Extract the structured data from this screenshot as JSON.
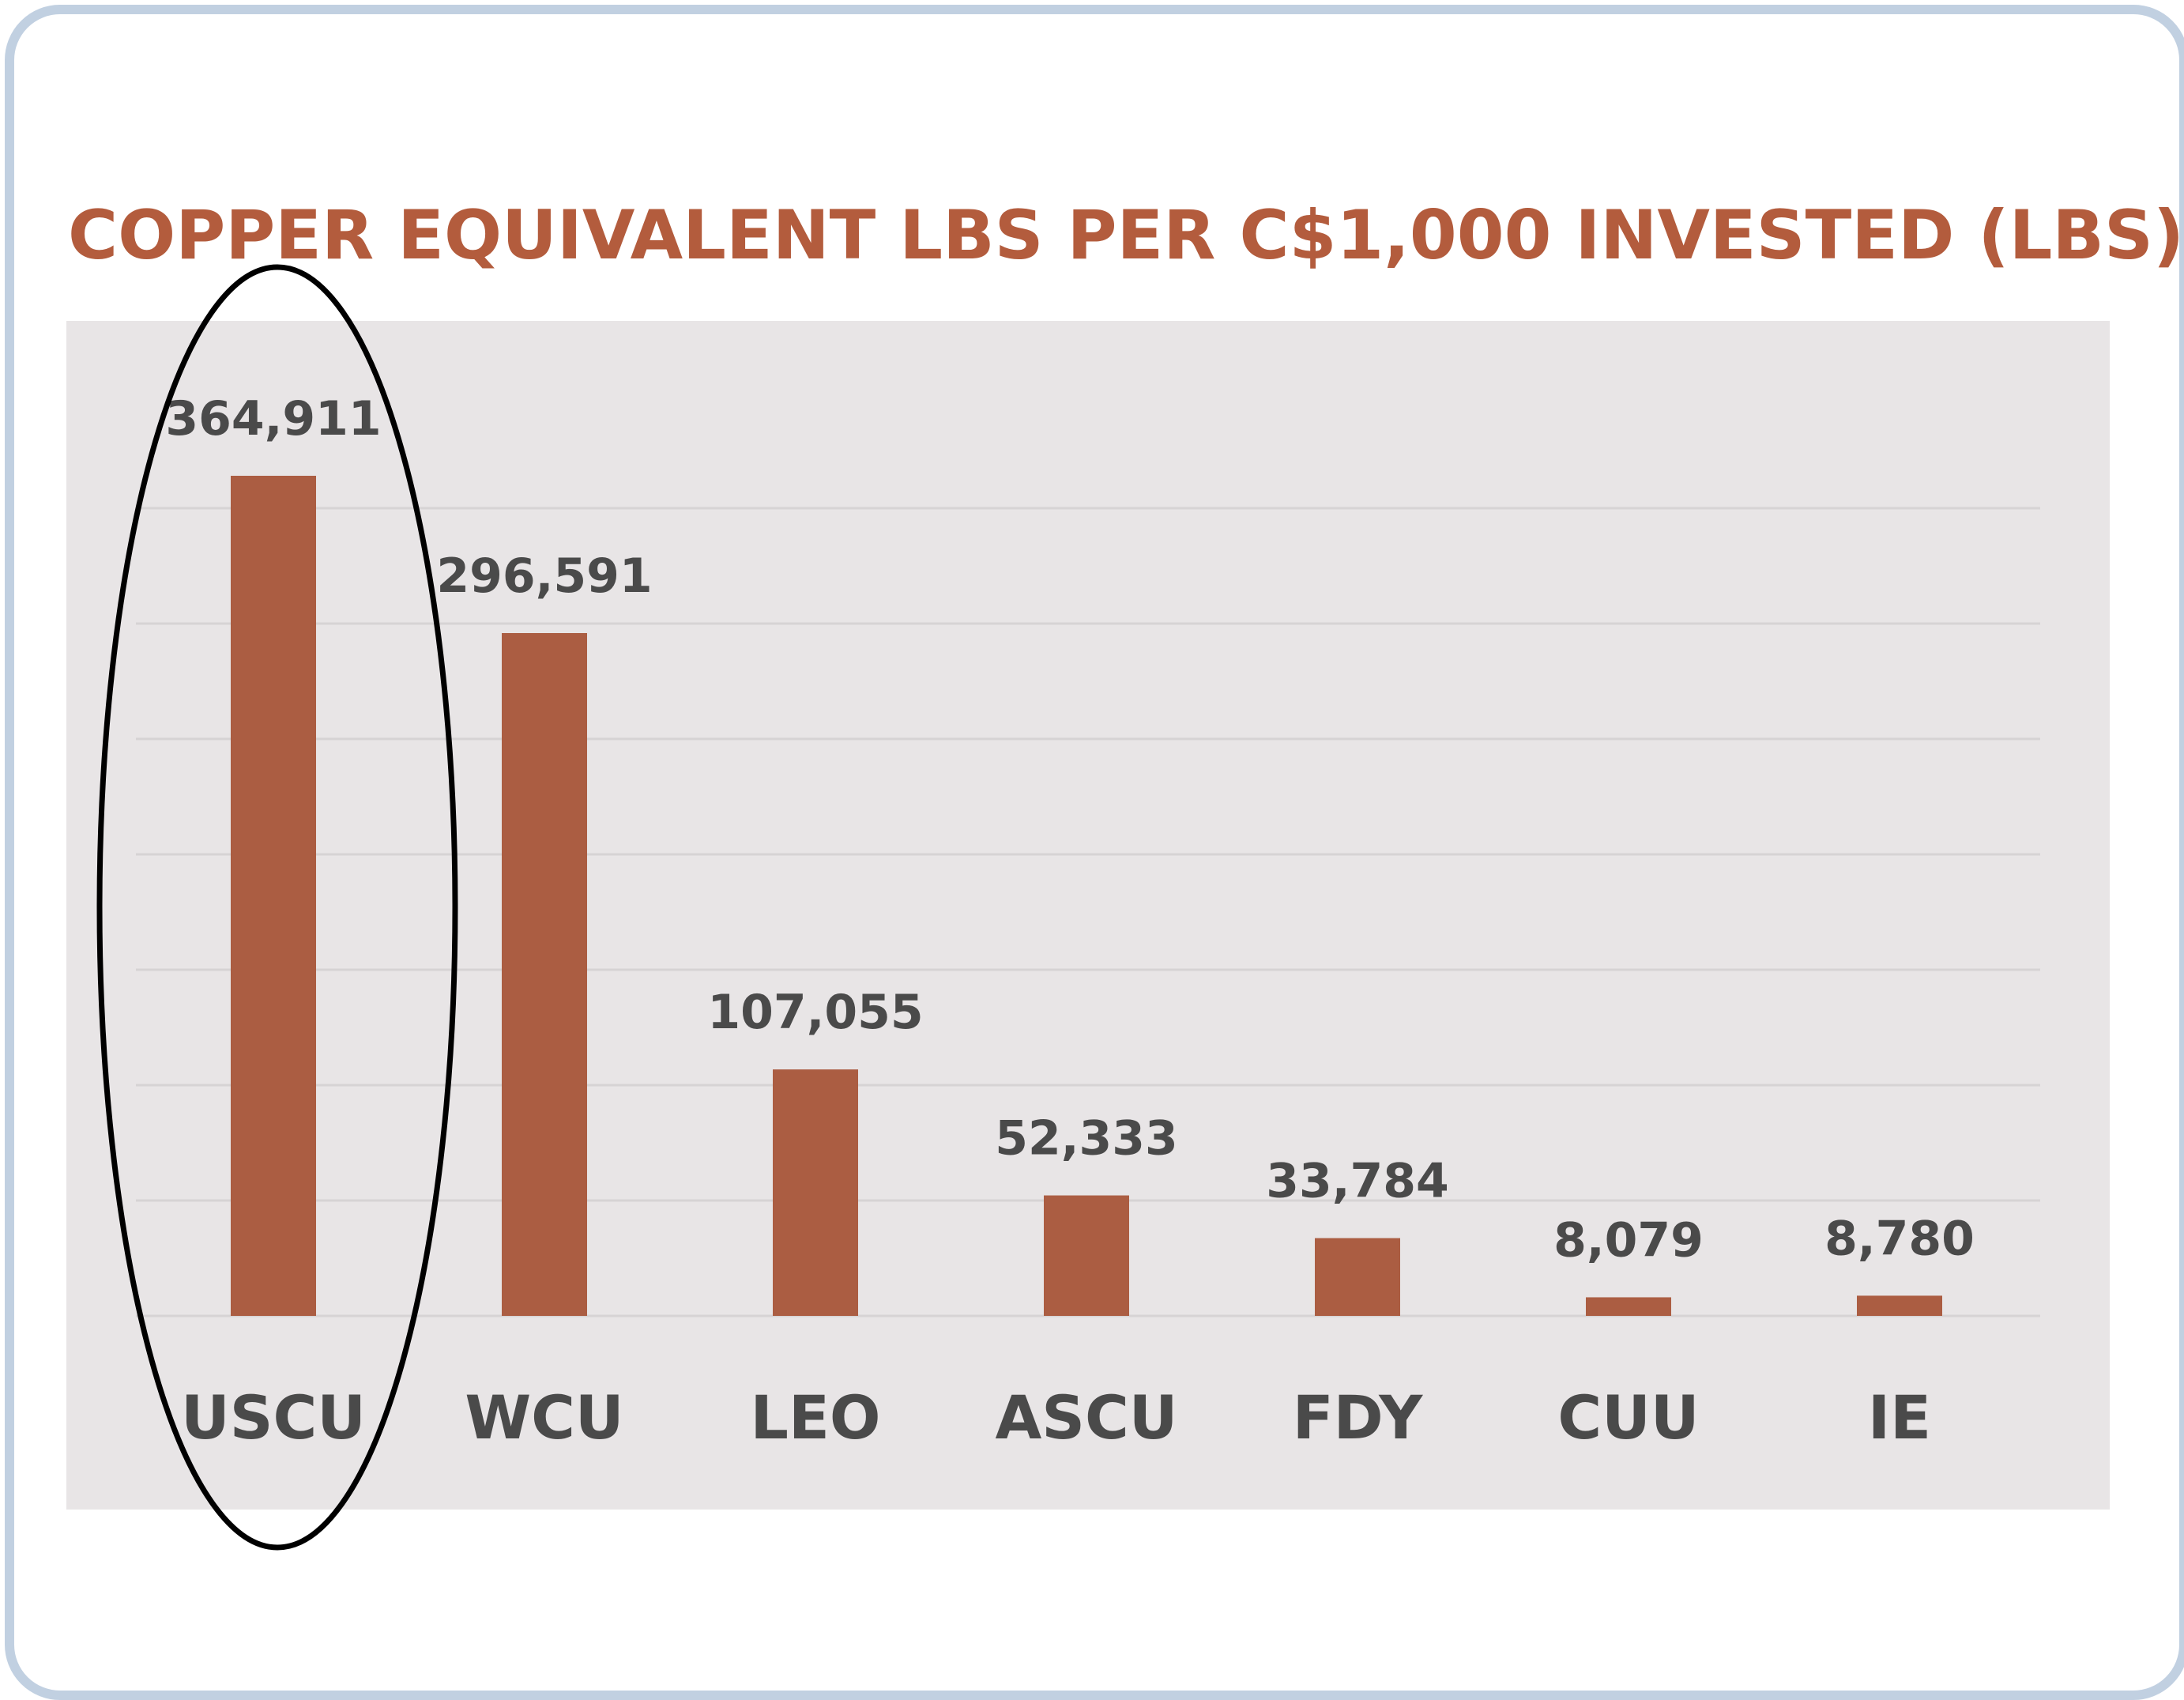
{
  "chart_data": {
    "type": "bar",
    "title": "COPPER EQUIVALENT LBS PER C$1,000 INVESTED (LBS)",
    "categories": [
      "USCU",
      "WCU",
      "LEO",
      "ASCU",
      "FDY",
      "CUU",
      "IE"
    ],
    "values": [
      364911,
      296591,
      107055,
      52333,
      33784,
      8079,
      8780
    ],
    "value_labels": [
      "364,911",
      "296,591",
      "107,055",
      "52,333",
      "33,784",
      "8,079",
      "8,780"
    ],
    "ylim": [
      0,
      400000
    ],
    "grid": true,
    "highlight": "USCU",
    "colors": {
      "bar": "#ab5d42",
      "title": "#b35c3d",
      "labels": "#4a4a4a",
      "panel": "#e8e5e6",
      "grid": "#d6d3d4",
      "highlight_ring": "#000000"
    }
  }
}
